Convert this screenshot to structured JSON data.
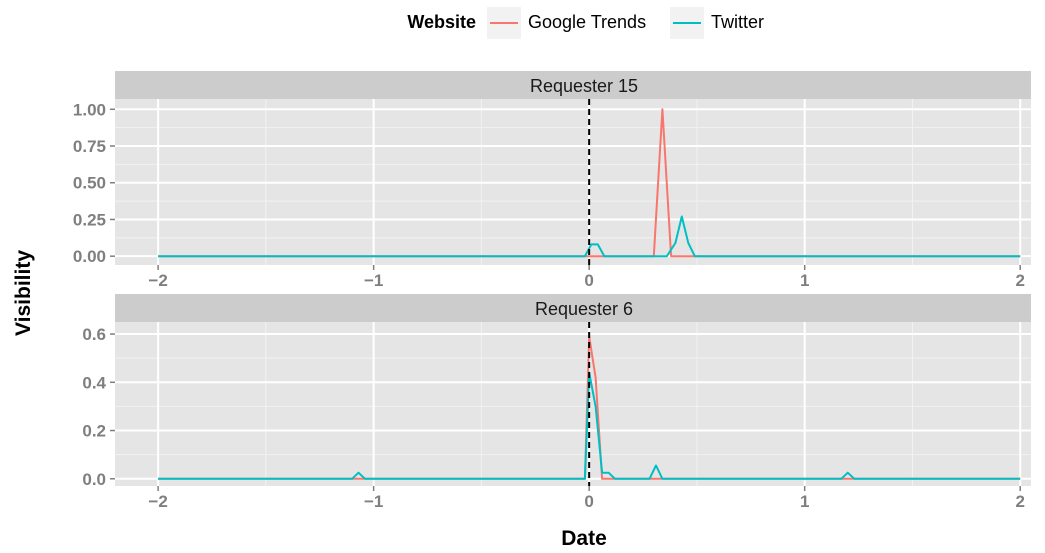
{
  "chart_data": {
    "type": "line",
    "xlabel": "Date",
    "ylabel": "Visibility",
    "legend": {
      "title": "Website",
      "position": "top",
      "entries": [
        {
          "name": "Google Trends",
          "color": "#F8766D"
        },
        {
          "name": "Twitter",
          "color": "#00BFC4"
        }
      ]
    },
    "grid": true,
    "x_ticks": [
      -2,
      -1,
      0,
      1,
      2
    ],
    "x_tick_labels": [
      "−2",
      "−1",
      "0",
      "1",
      "2"
    ],
    "xlim": [
      -2.2,
      2.05
    ],
    "vline": {
      "x": 0,
      "style": "dashed",
      "color": "#000000"
    },
    "panels": [
      {
        "title": "Requester 15",
        "ylim": [
          -0.06,
          1.07
        ],
        "y_ticks": [
          0,
          0.25,
          0.5,
          0.75,
          1.0
        ],
        "y_tick_labels": [
          "0.00",
          "0.25",
          "0.50",
          "0.75",
          "1.00"
        ],
        "series": [
          {
            "name": "Google Trends",
            "color": "#F8766D",
            "points": [
              [
                -2,
                0
              ],
              [
                0.3,
                0
              ],
              [
                0.34,
                1.0
              ],
              [
                0.38,
                0
              ],
              [
                2,
                0
              ]
            ]
          },
          {
            "name": "Twitter",
            "color": "#00BFC4",
            "points": [
              [
                -2,
                0
              ],
              [
                -0.02,
                0
              ],
              [
                0.01,
                0.08
              ],
              [
                0.04,
                0.08
              ],
              [
                0.07,
                0
              ],
              [
                0.36,
                0
              ],
              [
                0.4,
                0.09
              ],
              [
                0.43,
                0.27
              ],
              [
                0.46,
                0.09
              ],
              [
                0.49,
                0
              ],
              [
                2,
                0
              ]
            ]
          }
        ]
      },
      {
        "title": "Requester 6",
        "ylim": [
          -0.03,
          0.65
        ],
        "y_ticks": [
          0,
          0.2,
          0.4,
          0.6
        ],
        "y_tick_labels": [
          "0.0",
          "0.2",
          "0.4",
          "0.6"
        ],
        "series": [
          {
            "name": "Google Trends",
            "color": "#F8766D",
            "points": [
              [
                -2,
                0
              ],
              [
                -0.02,
                0
              ],
              [
                0.0,
                0.59
              ],
              [
                0.03,
                0.42
              ],
              [
                0.06,
                0
              ],
              [
                2,
                0
              ]
            ]
          },
          {
            "name": "Twitter",
            "color": "#00BFC4",
            "points": [
              [
                -2,
                0
              ],
              [
                -1.1,
                0
              ],
              [
                -1.07,
                0.025
              ],
              [
                -1.04,
                0
              ],
              [
                -0.02,
                0
              ],
              [
                0.0,
                0.44
              ],
              [
                0.03,
                0.3
              ],
              [
                0.06,
                0.025
              ],
              [
                0.09,
                0.025
              ],
              [
                0.12,
                0
              ],
              [
                0.28,
                0
              ],
              [
                0.31,
                0.055
              ],
              [
                0.34,
                0
              ],
              [
                1.17,
                0
              ],
              [
                1.2,
                0.025
              ],
              [
                1.23,
                0
              ],
              [
                2,
                0
              ]
            ]
          }
        ]
      }
    ]
  }
}
